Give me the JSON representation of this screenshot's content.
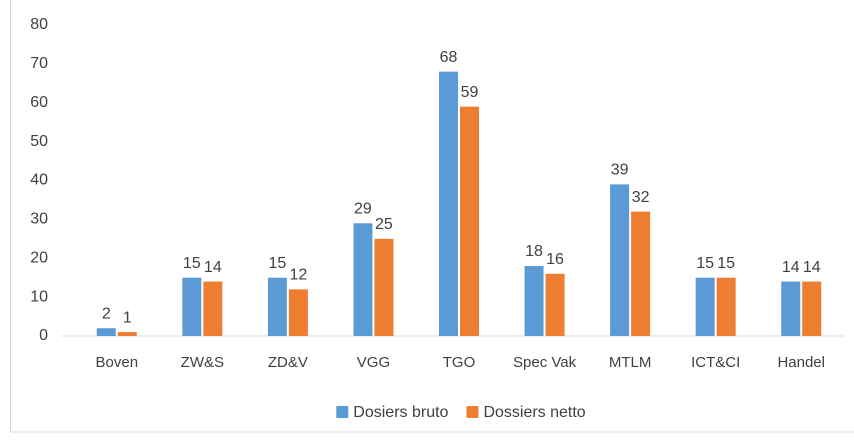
{
  "chart_data": {
    "type": "bar",
    "categories": [
      "Boven",
      "ZW&S",
      "ZD&V",
      "VGG",
      "TGO",
      "Spec Vak",
      "MTLM",
      "ICT&CI",
      "Handel"
    ],
    "series": [
      {
        "name": "Dosiers bruto",
        "color": "#5b9bd5",
        "values": [
          2,
          15,
          15,
          29,
          68,
          18,
          39,
          15,
          14
        ]
      },
      {
        "name": "Dossiers netto",
        "color": "#ed7d31",
        "values": [
          1,
          14,
          12,
          25,
          59,
          16,
          32,
          15,
          14
        ]
      }
    ],
    "ylim": [
      0,
      80
    ],
    "yticks": [
      0,
      10,
      20,
      30,
      40,
      50,
      60,
      70,
      80
    ],
    "grid": false,
    "legend": "bottom"
  }
}
